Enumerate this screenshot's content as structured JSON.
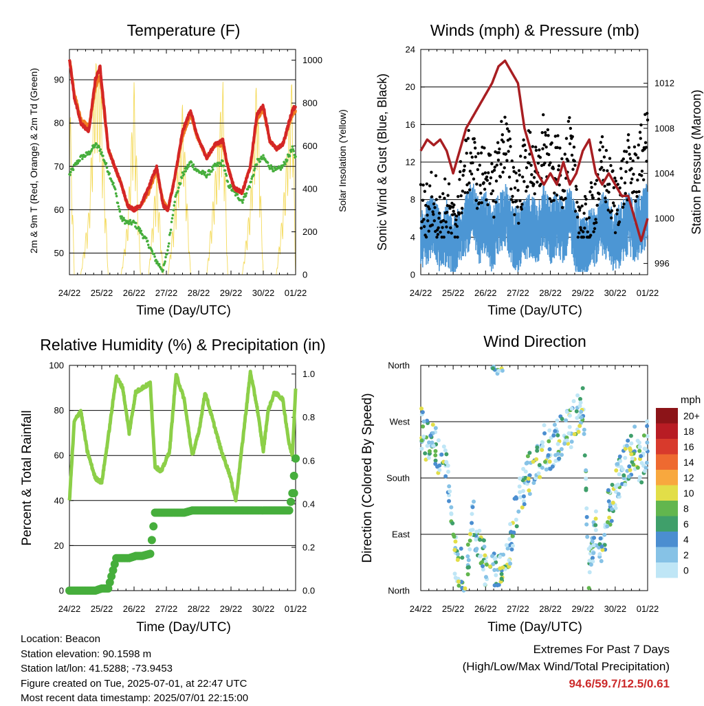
{
  "panels": {
    "temperature": {
      "title": "Temperature (F)",
      "ylabel_left": "2m & 9m T (Red, Orange) & 2m Td (Green)",
      "ylabel_right": "Solar Insolation (Yellow)",
      "xlabel": "Time (Day/UTC)"
    },
    "winds": {
      "title": "Winds (mph) & Pressure (mb)",
      "ylabel_left": "Sonic Wind & Gust (Blue, Black)",
      "ylabel_right": "Station Pressure (Maroon)",
      "xlabel": "Time (Day/UTC)"
    },
    "humidity": {
      "title": "Relative Humidity (%) & Precipitation (in)",
      "ylabel_left": "Percent & Total Rainfall",
      "xlabel": "Time (Day/UTC)"
    },
    "direction": {
      "title": "Wind Direction",
      "ylabel_left": "Direction (Colored By Speed)",
      "xlabel": "Time (Day/UTC)",
      "colorbar_title": "mph"
    }
  },
  "info": {
    "location": "Location: Beacon",
    "elevation": "Station elevation: 90.1598 m",
    "latlon": "Station lat/lon: 41.5288; -73.9453",
    "created": "Figure created on Tue, 2025-07-01, at 22:47 UTC",
    "latest": "Most recent data timestamp: 2025/07/01 22:15:00"
  },
  "extremes": {
    "line1": "Extremes For Past 7 Days",
    "line2": "(High/Low/Max Wind/Total Precipitation)",
    "values": "94.6/59.7/12.5/0.61"
  },
  "colors": {
    "temp2m": "#d42626",
    "temp9m": "#f07c22",
    "dewpoint": "#46ae3c",
    "solar": "#f4da5a",
    "wind": "#4c96d4",
    "gust": "#000000",
    "pressure": "#a81e22",
    "rh": "#8ccf48",
    "precip": "#46ae3c"
  },
  "chart_data": [
    {
      "type": "line",
      "title": "Temperature (F)",
      "x_ticks": [
        "24/22",
        "25/22",
        "26/22",
        "27/22",
        "28/22",
        "29/22",
        "30/22",
        "01/22"
      ],
      "ylim": [
        45,
        97
      ],
      "y_ticks": [
        50,
        60,
        70,
        80,
        90
      ],
      "y2lim": [
        0,
        1050
      ],
      "y2_ticks": [
        0,
        200,
        400,
        600,
        800,
        1000
      ],
      "x_day": [
        0,
        0.15,
        0.35,
        0.6,
        0.8,
        0.95,
        1.2,
        1.4,
        1.6,
        1.8,
        2.0,
        2.2,
        2.45,
        2.7,
        2.9,
        3.05,
        3.25,
        3.5,
        3.75,
        3.95,
        4.25,
        4.5,
        4.75,
        4.9,
        5.1,
        5.35,
        5.6,
        5.8,
        6.0,
        6.2,
        6.4,
        6.6,
        6.9,
        7.0
      ],
      "series": [
        {
          "name": "2m T",
          "values": [
            95,
            86,
            80,
            78,
            90,
            93,
            74,
            70,
            66,
            61,
            60,
            61,
            65,
            70,
            61,
            60,
            67,
            78,
            83,
            77,
            72,
            75,
            76,
            70,
            65,
            64,
            70,
            82,
            84,
            76,
            74,
            75,
            83,
            84
          ]
        },
        {
          "name": "9m T",
          "values": [
            95,
            87,
            81,
            79,
            88,
            91,
            74,
            70,
            66,
            61,
            60,
            61,
            64,
            69,
            62,
            60,
            67,
            77,
            82,
            77,
            72,
            75,
            75,
            70,
            65,
            64,
            70,
            81,
            83,
            76,
            74,
            75,
            82,
            83
          ]
        },
        {
          "name": "2m Td",
          "values": [
            68,
            70,
            72,
            73,
            75,
            74,
            69,
            65,
            58,
            57,
            57,
            55,
            52,
            48,
            46,
            51,
            62,
            68,
            71,
            69,
            68,
            70,
            71,
            66,
            64,
            62,
            66,
            71,
            72,
            70,
            69,
            70,
            74,
            72
          ]
        },
        {
          "name": "Solar Insolation",
          "values": [
            950,
            0,
            0,
            300,
            1000,
            950,
            0,
            0,
            0,
            250,
            900,
            0,
            0,
            500,
            0,
            0,
            300,
            800,
            0,
            0,
            0,
            450,
            900,
            0,
            0,
            0,
            350,
            950,
            0,
            0,
            0,
            300,
            950,
            0
          ]
        }
      ]
    },
    {
      "type": "scatter",
      "title": "Winds (mph) & Pressure (mb)",
      "x_ticks": [
        "24/22",
        "25/22",
        "26/22",
        "27/22",
        "28/22",
        "29/22",
        "30/22",
        "01/22"
      ],
      "ylim": [
        0,
        24
      ],
      "y_ticks": [
        0,
        4,
        8,
        12,
        16,
        20,
        24
      ],
      "y2lim": [
        995,
        1015
      ],
      "y2_ticks": [
        996,
        1000,
        1004,
        1008,
        1012
      ],
      "x_day": [
        0,
        0.2,
        0.4,
        0.6,
        0.8,
        1.0,
        1.2,
        1.4,
        1.6,
        1.8,
        2.0,
        2.2,
        2.4,
        2.6,
        2.8,
        3.0,
        3.2,
        3.4,
        3.6,
        3.8,
        4.0,
        4.2,
        4.4,
        4.6,
        4.8,
        5.0,
        5.2,
        5.4,
        5.6,
        5.8,
        6.0,
        6.2,
        6.4,
        6.6,
        6.8,
        7.0
      ],
      "series": [
        {
          "name": "Station Pressure",
          "values": [
            1006,
            1007,
            1006.5,
            1007,
            1006,
            1004,
            1006,
            1008,
            1009,
            1010,
            1011,
            1012,
            1013.5,
            1014,
            1013,
            1012,
            1008,
            1006,
            1004,
            1003,
            1004,
            1003,
            1005,
            1003,
            1004,
            1006,
            1007,
            1004,
            1003,
            1004,
            1003,
            1002,
            1002,
            1000,
            998,
            1000
          ]
        },
        {
          "name": "Sonic Wind",
          "values": [
            4,
            5,
            6,
            4,
            5,
            3,
            5,
            6,
            7,
            5,
            6,
            4,
            6,
            7,
            5,
            4,
            5,
            6,
            5,
            7,
            5,
            6,
            5,
            7,
            4,
            3,
            4,
            5,
            6,
            5,
            4,
            5,
            6,
            5,
            6,
            7
          ]
        },
        {
          "name": "Gust",
          "values": [
            8,
            7,
            9,
            6,
            8,
            5,
            9,
            12,
            13,
            10,
            12,
            9,
            13,
            15,
            11,
            9,
            12,
            13,
            10,
            15,
            11,
            12,
            11,
            14,
            9,
            5,
            6,
            9,
            12,
            10,
            8,
            10,
            12,
            11,
            13,
            15
          ]
        }
      ]
    },
    {
      "type": "line",
      "title": "Relative Humidity (%) & Precipitation (in)",
      "x_ticks": [
        "24/22",
        "25/22",
        "26/22",
        "27/22",
        "28/22",
        "29/22",
        "30/22",
        "01/22"
      ],
      "ylim": [
        0,
        100
      ],
      "y_ticks": [
        0,
        20,
        40,
        60,
        80,
        100
      ],
      "y2lim": [
        0,
        1.04
      ],
      "y2_ticks": [
        0.0,
        0.2,
        0.4,
        0.6,
        0.8,
        1.0
      ],
      "x_day": [
        0,
        0.15,
        0.35,
        0.55,
        0.8,
        1.0,
        1.2,
        1.45,
        1.65,
        1.85,
        2.05,
        2.25,
        2.5,
        2.65,
        2.85,
        3.1,
        3.3,
        3.55,
        3.8,
        4.0,
        4.2,
        4.45,
        4.7,
        4.95,
        5.15,
        5.35,
        5.6,
        5.8,
        6.0,
        6.15,
        6.35,
        6.6,
        6.8,
        6.9,
        7.0
      ],
      "series": [
        {
          "name": "Relative Humidity",
          "values": [
            40,
            75,
            80,
            62,
            50,
            48,
            68,
            95,
            90,
            70,
            88,
            90,
            92,
            55,
            53,
            62,
            96,
            85,
            60,
            70,
            88,
            75,
            62,
            52,
            40,
            65,
            97,
            82,
            62,
            80,
            88,
            85,
            65,
            60,
            90
          ]
        },
        {
          "name": "Total Precipitation",
          "values": [
            0,
            0,
            0,
            0,
            0,
            0.01,
            0.01,
            0.15,
            0.15,
            0.15,
            0.16,
            0.16,
            0.17,
            0.36,
            0.36,
            0.36,
            0.36,
            0.36,
            0.37,
            0.37,
            0.37,
            0.37,
            0.37,
            0.37,
            0.37,
            0.37,
            0.37,
            0.37,
            0.37,
            0.37,
            0.37,
            0.37,
            0.37,
            0.45,
            0.61
          ]
        }
      ]
    },
    {
      "type": "scatter",
      "title": "Wind Direction",
      "x_ticks": [
        "24/22",
        "25/22",
        "26/22",
        "27/22",
        "28/22",
        "29/22",
        "30/22",
        "01/22"
      ],
      "y_ticks": [
        "North",
        "East",
        "South",
        "West",
        "North"
      ],
      "ylim": [
        0,
        360
      ],
      "colorbar": {
        "title": "mph",
        "labels": [
          "0",
          "2",
          "4",
          "6",
          "8",
          "10",
          "12",
          "14",
          "16",
          "18",
          "20+"
        ],
        "colors": [
          "#bfe6f6",
          "#86c2e6",
          "#4b8ed0",
          "#3f9f6a",
          "#62b64e",
          "#e2de48",
          "#f8a83e",
          "#ee6a30",
          "#d83a2c",
          "#b81c24",
          "#8c1418"
        ]
      },
      "x_day": [
        0,
        0.2,
        0.4,
        0.6,
        0.8,
        1.0,
        1.2,
        1.4,
        1.6,
        1.8,
        2.0,
        2.2,
        2.4,
        2.6,
        2.8,
        3.0,
        3.2,
        3.4,
        3.6,
        3.8,
        4.0,
        4.2,
        4.4,
        4.6,
        4.8,
        5.0,
        5.2,
        5.4,
        5.6,
        5.8,
        6.0,
        6.2,
        6.4,
        6.6,
        6.8,
        7.0
      ],
      "series": [
        {
          "name": "Wind Direction",
          "values": [
            260,
            240,
            230,
            220,
            200,
            60,
            40,
            30,
            120,
            70,
            40,
            30,
            20,
            30,
            90,
            140,
            170,
            190,
            200,
            230,
            220,
            240,
            250,
            260,
            280,
            300,
            20,
            110,
            70,
            130,
            160,
            190,
            210,
            230,
            200,
            240
          ]
        }
      ]
    }
  ]
}
